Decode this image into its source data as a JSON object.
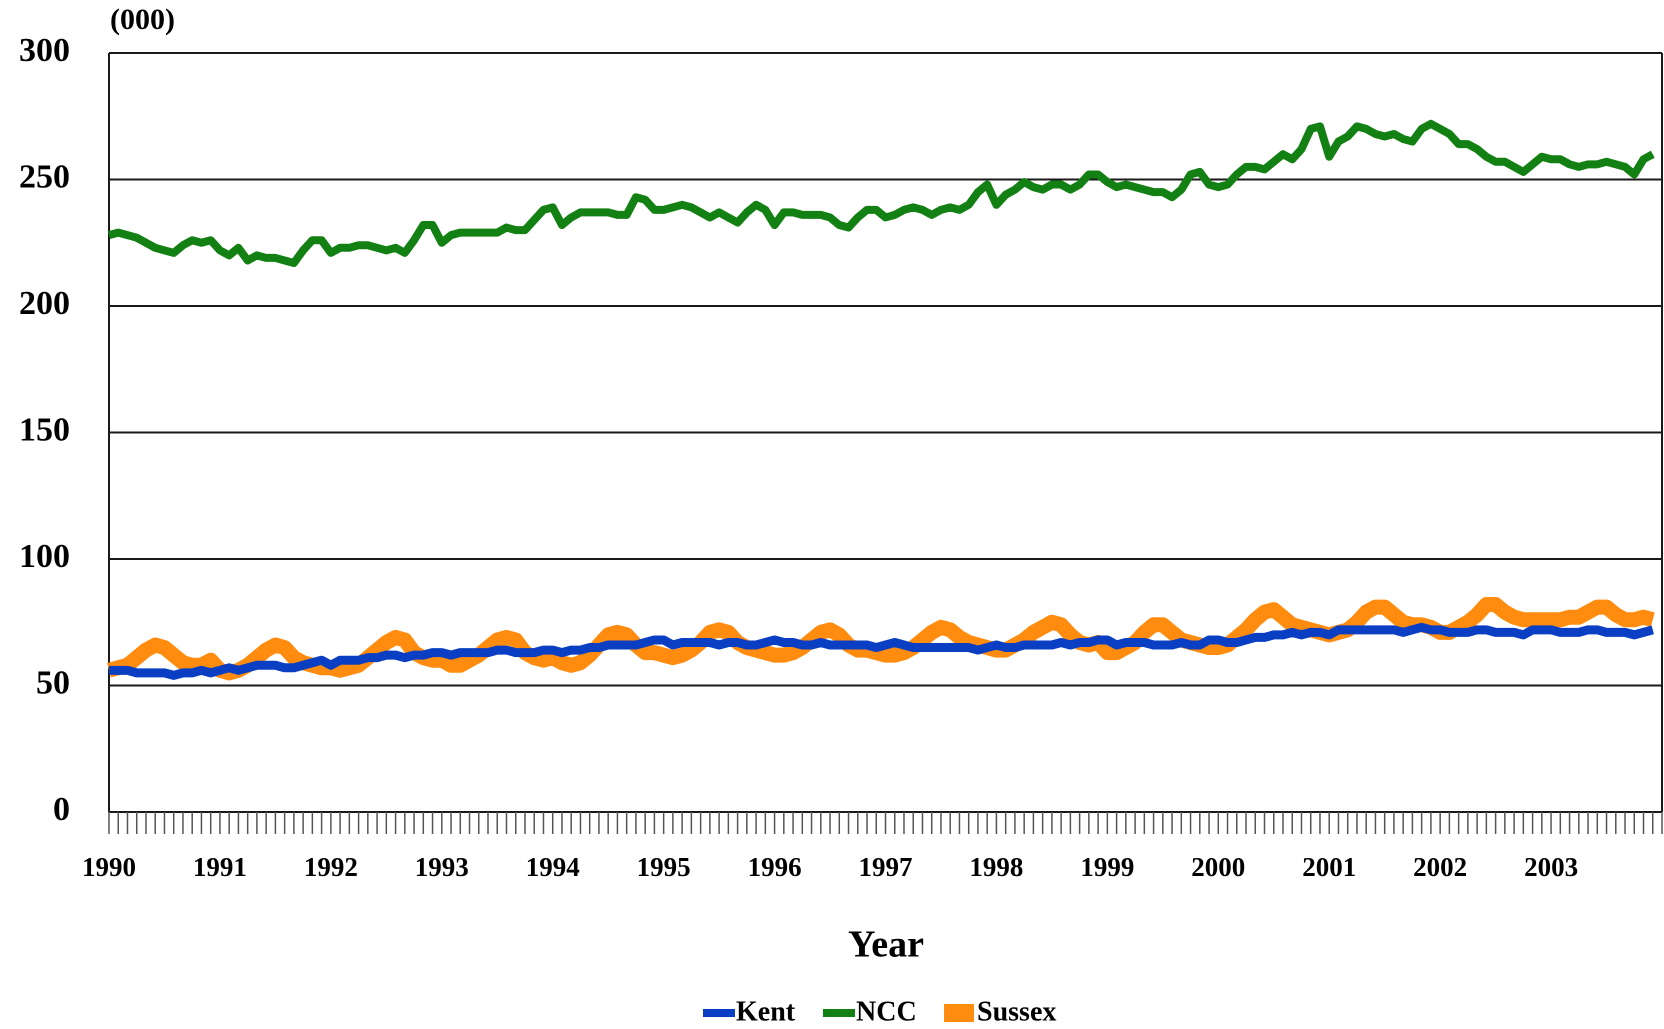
{
  "chart_data": {
    "type": "line",
    "y_unit": "(000)",
    "xlabel": "Year",
    "categories": [
      "1990",
      null,
      null,
      null,
      null,
      null,
      null,
      null,
      null,
      null,
      null,
      null,
      "1991",
      null,
      null,
      null,
      null,
      null,
      null,
      null,
      null,
      null,
      null,
      null,
      "1992",
      null,
      null,
      null,
      null,
      null,
      null,
      null,
      null,
      null,
      null,
      null,
      "1993",
      null,
      null,
      null,
      null,
      null,
      null,
      null,
      null,
      null,
      null,
      null,
      "1994",
      null,
      null,
      null,
      null,
      null,
      null,
      null,
      null,
      null,
      null,
      null,
      "1995",
      null,
      null,
      null,
      null,
      null,
      null,
      null,
      null,
      null,
      null,
      null,
      "1996",
      null,
      null,
      null,
      null,
      null,
      null,
      null,
      null,
      null,
      null,
      null,
      "1997",
      null,
      null,
      null,
      null,
      null,
      null,
      null,
      null,
      null,
      null,
      null,
      "1998",
      null,
      null,
      null,
      null,
      null,
      null,
      null,
      null,
      null,
      null,
      null,
      "1999",
      null,
      null,
      null,
      null,
      null,
      null,
      null,
      null,
      null,
      null,
      null,
      "2000",
      null,
      null,
      null,
      null,
      null,
      null,
      null,
      null,
      null,
      null,
      null,
      "2001",
      null,
      null,
      null,
      null,
      null,
      null,
      null,
      null,
      null,
      null,
      null,
      "2002",
      null,
      null,
      null,
      null,
      null,
      null,
      null,
      null,
      null,
      null,
      null,
      "2003",
      null,
      null,
      null,
      null,
      null,
      null,
      null,
      null,
      null,
      null,
      null
    ],
    "series": [
      {
        "name": "Kent",
        "color": "#0a3fc4",
        "values": [
          56,
          56,
          56,
          55,
          55,
          55,
          55,
          54,
          55,
          55,
          56,
          55,
          56,
          57,
          56,
          57,
          58,
          58,
          58,
          57,
          57,
          58,
          59,
          60,
          58,
          60,
          60,
          60,
          61,
          61,
          62,
          62,
          61,
          62,
          62,
          63,
          63,
          62,
          63,
          63,
          63,
          63,
          64,
          64,
          63,
          63,
          63,
          64,
          64,
          63,
          64,
          64,
          65,
          65,
          66,
          66,
          66,
          66,
          67,
          68,
          68,
          66,
          67,
          67,
          67,
          67,
          66,
          67,
          67,
          66,
          66,
          67,
          68,
          67,
          67,
          66,
          66,
          67,
          66,
          66,
          66,
          66,
          66,
          65,
          66,
          67,
          66,
          65,
          65,
          65,
          65,
          65,
          65,
          65,
          64,
          65,
          66,
          65,
          65,
          66,
          66,
          66,
          66,
          67,
          66,
          67,
          67,
          68,
          68,
          66,
          67,
          67,
          67,
          66,
          66,
          66,
          67,
          66,
          66,
          68,
          68,
          67,
          67,
          68,
          69,
          69,
          70,
          70,
          71,
          70,
          71,
          71,
          70,
          72,
          72,
          72,
          72,
          72,
          72,
          72,
          71,
          72,
          73,
          72,
          72,
          71,
          71,
          71,
          72,
          72,
          71,
          71,
          71,
          70,
          72,
          72,
          72,
          71,
          71,
          71,
          72,
          72,
          71,
          71,
          71,
          70,
          71,
          72
        ]
      },
      {
        "name": "NCC",
        "color": "#138013",
        "values": [
          228,
          229,
          228,
          227,
          225,
          223,
          222,
          221,
          224,
          226,
          225,
          226,
          222,
          220,
          223,
          218,
          220,
          219,
          219,
          218,
          217,
          222,
          226,
          226,
          221,
          223,
          223,
          224,
          224,
          223,
          222,
          223,
          221,
          226,
          232,
          232,
          225,
          228,
          229,
          229,
          229,
          229,
          229,
          231,
          230,
          230,
          234,
          238,
          239,
          232,
          235,
          237,
          237,
          237,
          237,
          236,
          236,
          243,
          242,
          238,
          238,
          239,
          240,
          239,
          237,
          235,
          237,
          235,
          233,
          237,
          240,
          238,
          232,
          237,
          237,
          236,
          236,
          236,
          235,
          232,
          231,
          235,
          238,
          238,
          235,
          236,
          238,
          239,
          238,
          236,
          238,
          239,
          238,
          240,
          245,
          248,
          240,
          244,
          246,
          249,
          247,
          246,
          248,
          248,
          246,
          248,
          252,
          252,
          249,
          247,
          248,
          247,
          246,
          245,
          245,
          243,
          246,
          252,
          253,
          248,
          247,
          248,
          252,
          255,
          255,
          254,
          257,
          260,
          258,
          262,
          270,
          271,
          259,
          265,
          267,
          271,
          270,
          268,
          267,
          268,
          266,
          265,
          270,
          272,
          270,
          268,
          264,
          264,
          262,
          259,
          257,
          257,
          255,
          253,
          256,
          259,
          258,
          258,
          256,
          255,
          256,
          256,
          257,
          256,
          255,
          252,
          258,
          260
        ]
      },
      {
        "name": "Sussex",
        "color": "#ff8c0f",
        "values": [
          56,
          57,
          58,
          61,
          64,
          66,
          65,
          62,
          59,
          58,
          58,
          60,
          56,
          55,
          56,
          58,
          61,
          64,
          66,
          65,
          61,
          59,
          58,
          57,
          57,
          56,
          57,
          58,
          61,
          64,
          67,
          69,
          68,
          63,
          61,
          60,
          60,
          58,
          58,
          60,
          62,
          65,
          68,
          69,
          68,
          63,
          61,
          60,
          61,
          59,
          58,
          59,
          62,
          66,
          70,
          71,
          70,
          66,
          63,
          63,
          62,
          61,
          62,
          64,
          67,
          71,
          72,
          71,
          67,
          65,
          64,
          63,
          62,
          62,
          63,
          65,
          68,
          71,
          72,
          70,
          66,
          64,
          64,
          63,
          62,
          62,
          63,
          65,
          68,
          71,
          73,
          72,
          69,
          67,
          66,
          65,
          64,
          64,
          66,
          68,
          71,
          73,
          75,
          74,
          70,
          67,
          66,
          67,
          63,
          63,
          65,
          67,
          71,
          74,
          74,
          71,
          68,
          67,
          66,
          65,
          65,
          66,
          69,
          72,
          76,
          79,
          80,
          77,
          74,
          73,
          72,
          71,
          70,
          71,
          72,
          75,
          79,
          81,
          81,
          78,
          75,
          74,
          74,
          73,
          71,
          71,
          73,
          75,
          78,
          82,
          82,
          79,
          77,
          76,
          76,
          76,
          76,
          76,
          77,
          77,
          79,
          81,
          81,
          78,
          76,
          76,
          77,
          76
        ]
      }
    ],
    "ylim": [
      0,
      300
    ],
    "yticks": [
      0,
      50,
      100,
      150,
      200,
      250,
      300
    ],
    "grid": true,
    "legend": "bottom"
  }
}
